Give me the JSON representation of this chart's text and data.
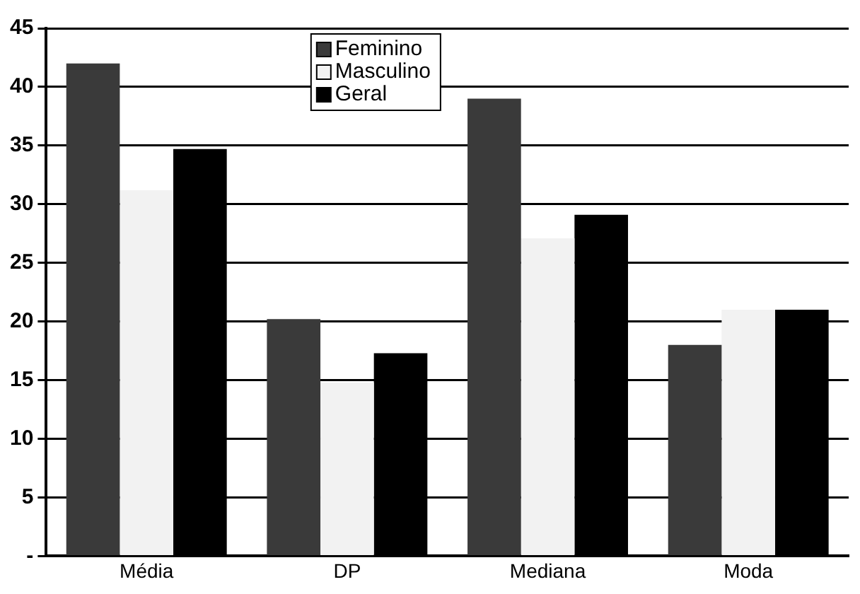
{
  "chart_data": {
    "type": "bar",
    "categories": [
      "Média",
      "DP",
      "Mediana",
      "Moda"
    ],
    "series": [
      {
        "name": "Feminino",
        "color": "#3a3a3a",
        "values": [
          42,
          20.2,
          39,
          18
        ]
      },
      {
        "name": "Masculino",
        "color": "#f2f2f2",
        "values": [
          31.2,
          14.8,
          27.1,
          21
        ]
      },
      {
        "name": "Geral",
        "color": "#000000",
        "values": [
          34.7,
          17.3,
          29.1,
          21
        ]
      }
    ],
    "ylim": [
      0,
      45
    ],
    "yticks": [
      {
        "value": 0,
        "label": "-"
      },
      5,
      10,
      15,
      20,
      25,
      30,
      35,
      40,
      45
    ],
    "grid": "y",
    "legend": "top"
  }
}
